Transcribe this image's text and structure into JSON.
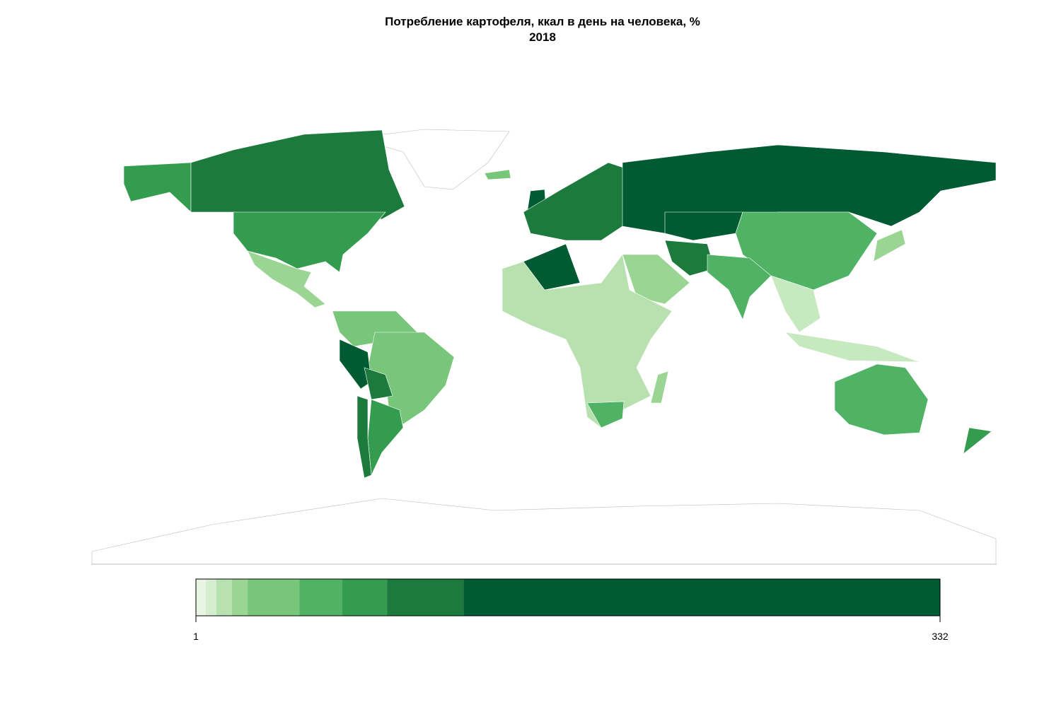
{
  "map": {
    "title": "Потребление картофеля, ккал в день на человека, %",
    "subtitle": "2018",
    "legend": {
      "xlim": [
        1,
        332
      ],
      "breaks": [
        1,
        5.4,
        10,
        17,
        24,
        47,
        66,
        86,
        120,
        332
      ],
      "colors": [
        "#e9f5e4",
        "#d4eecf",
        "#b7e2b0",
        "#9ad593",
        "#78c679",
        "#50b264",
        "#349c4f",
        "#1c7a3d",
        "#005a32"
      ],
      "ticks": [
        1,
        332
      ]
    }
  }
}
